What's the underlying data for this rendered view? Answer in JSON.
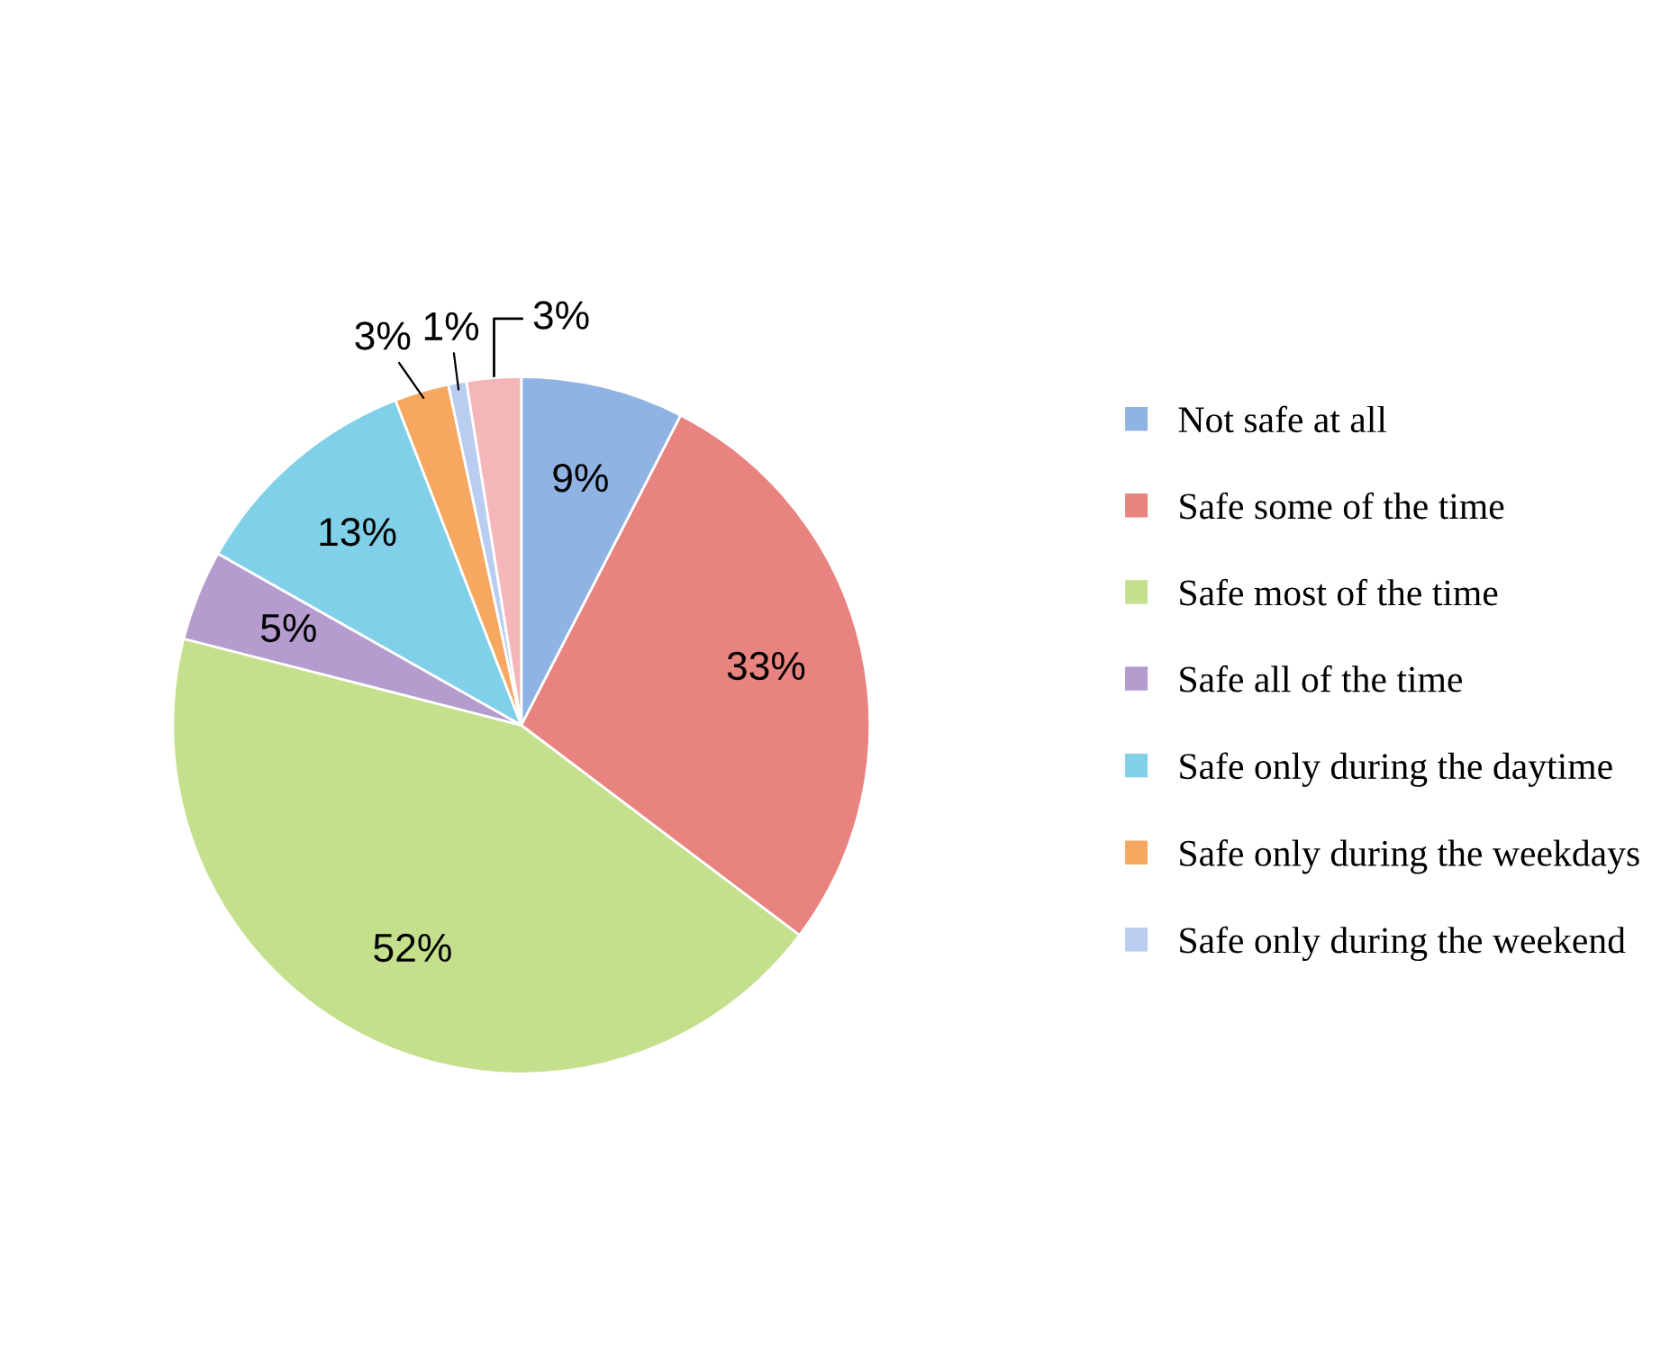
{
  "chart_data": {
    "type": "pie",
    "categories": [
      "Not safe at all",
      "Safe some of the time",
      "Safe most of the time",
      "Safe all of the time",
      "Safe only during the daytime",
      "Safe only during the weekdays",
      "Safe only during the weekend",
      null
    ],
    "values": [
      9,
      33,
      52,
      5,
      13,
      3,
      1,
      3
    ],
    "value_labels": [
      "9%",
      "33%",
      "52%",
      "5%",
      "13%",
      "3%",
      "1%",
      "3%"
    ],
    "colors": [
      "#8fb4e3",
      "#e8837f",
      "#c4e08d",
      "#b49ccf",
      "#7fd0e8",
      "#f6a860",
      "#b9cdf0",
      "#f4b6b8"
    ],
    "legend": "right"
  }
}
